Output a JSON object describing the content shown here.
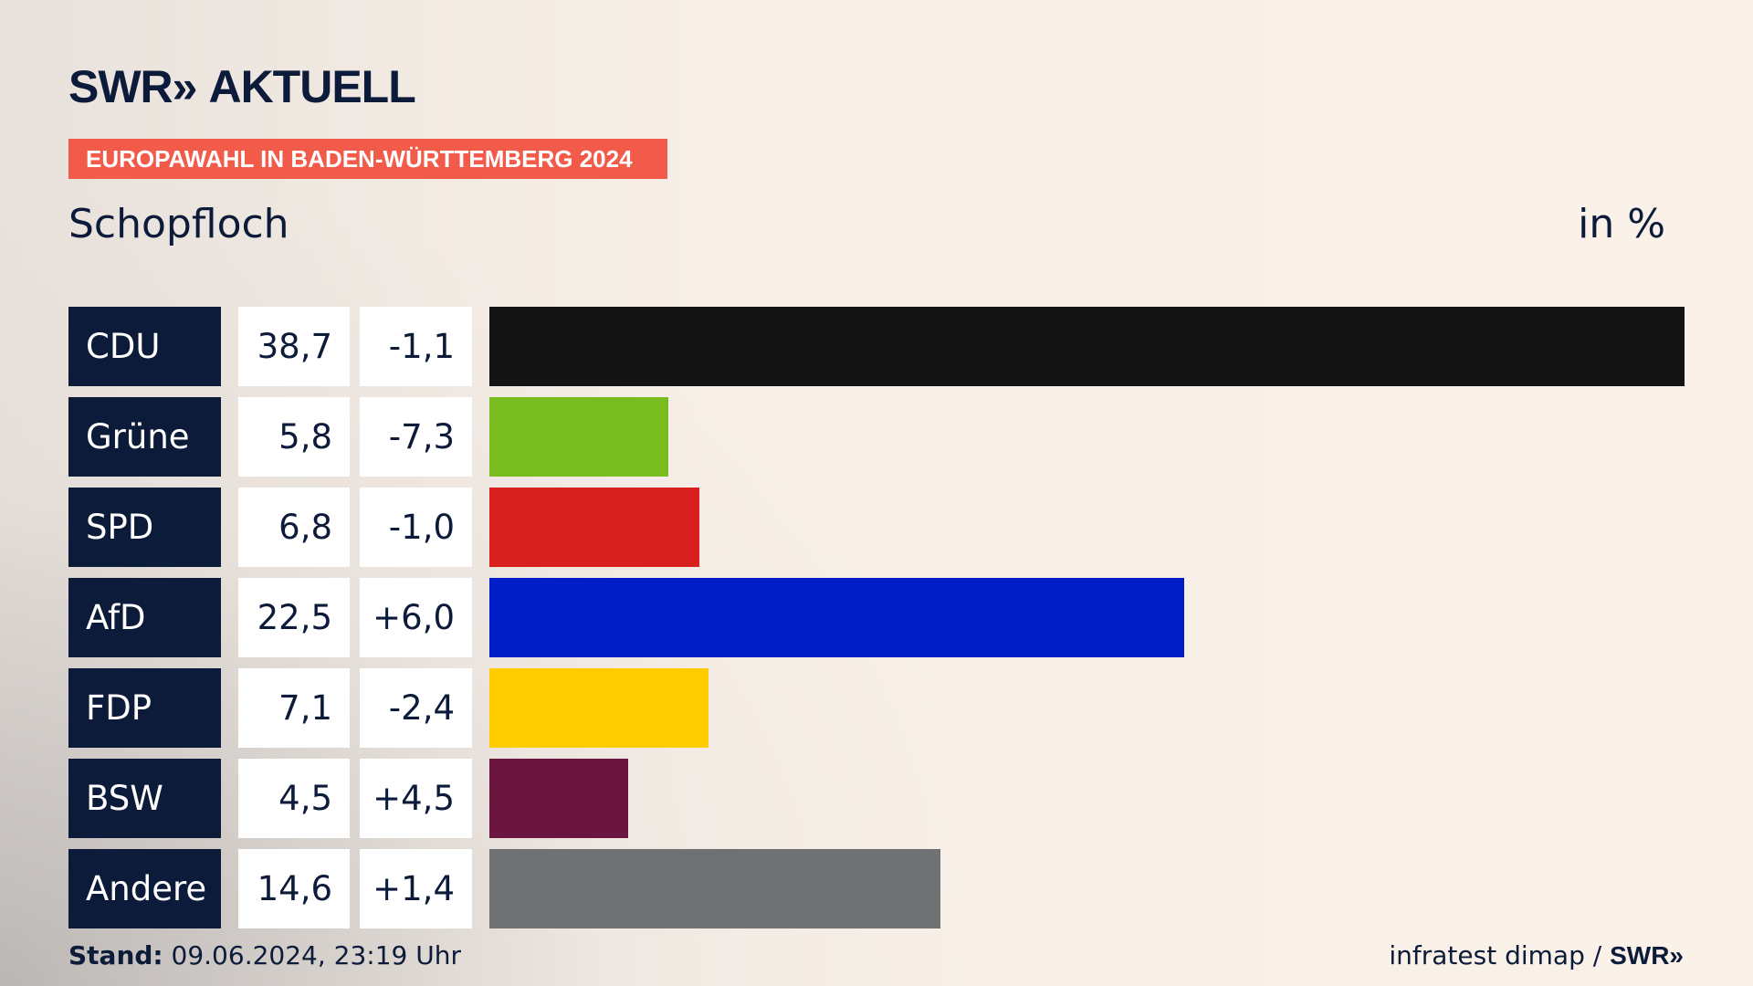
{
  "header": {
    "logo_brand": "SWR",
    "logo_arrows": "»",
    "logo_section": "AKTUELL",
    "tag": "EUROPAWAHL IN BADEN-WÜRTTEMBERG 2024",
    "place": "Schopfloch",
    "unit": "in %"
  },
  "chart_data": {
    "type": "bar",
    "orientation": "horizontal",
    "title": "Schopfloch",
    "unit": "in %",
    "xlim": [
      0,
      38.7
    ],
    "categories": [
      "CDU",
      "Grüne",
      "SPD",
      "AfD",
      "FDP",
      "BSW",
      "Andere"
    ],
    "values": [
      38.7,
      5.8,
      6.8,
      22.5,
      7.1,
      4.5,
      14.6
    ],
    "value_labels": [
      "38,7",
      "5,8",
      "6,8",
      "22,5",
      "7,1",
      "4,5",
      "14,6"
    ],
    "diff_labels": [
      "-1,1",
      "-7,3",
      "-1,0",
      "+6,0",
      "-2,4",
      "+4,5",
      "+1,4"
    ],
    "colors": [
      "#141414",
      "#78bc1e",
      "#d8201f",
      "#001ec8",
      "#ffcc00",
      "#6a163f",
      "#707172"
    ]
  },
  "footer": {
    "stand_label": "Stand:",
    "stand_value": "09.06.2024, 23:19 Uhr",
    "source": "infratest dimap /",
    "source_brand": "SWR»"
  }
}
